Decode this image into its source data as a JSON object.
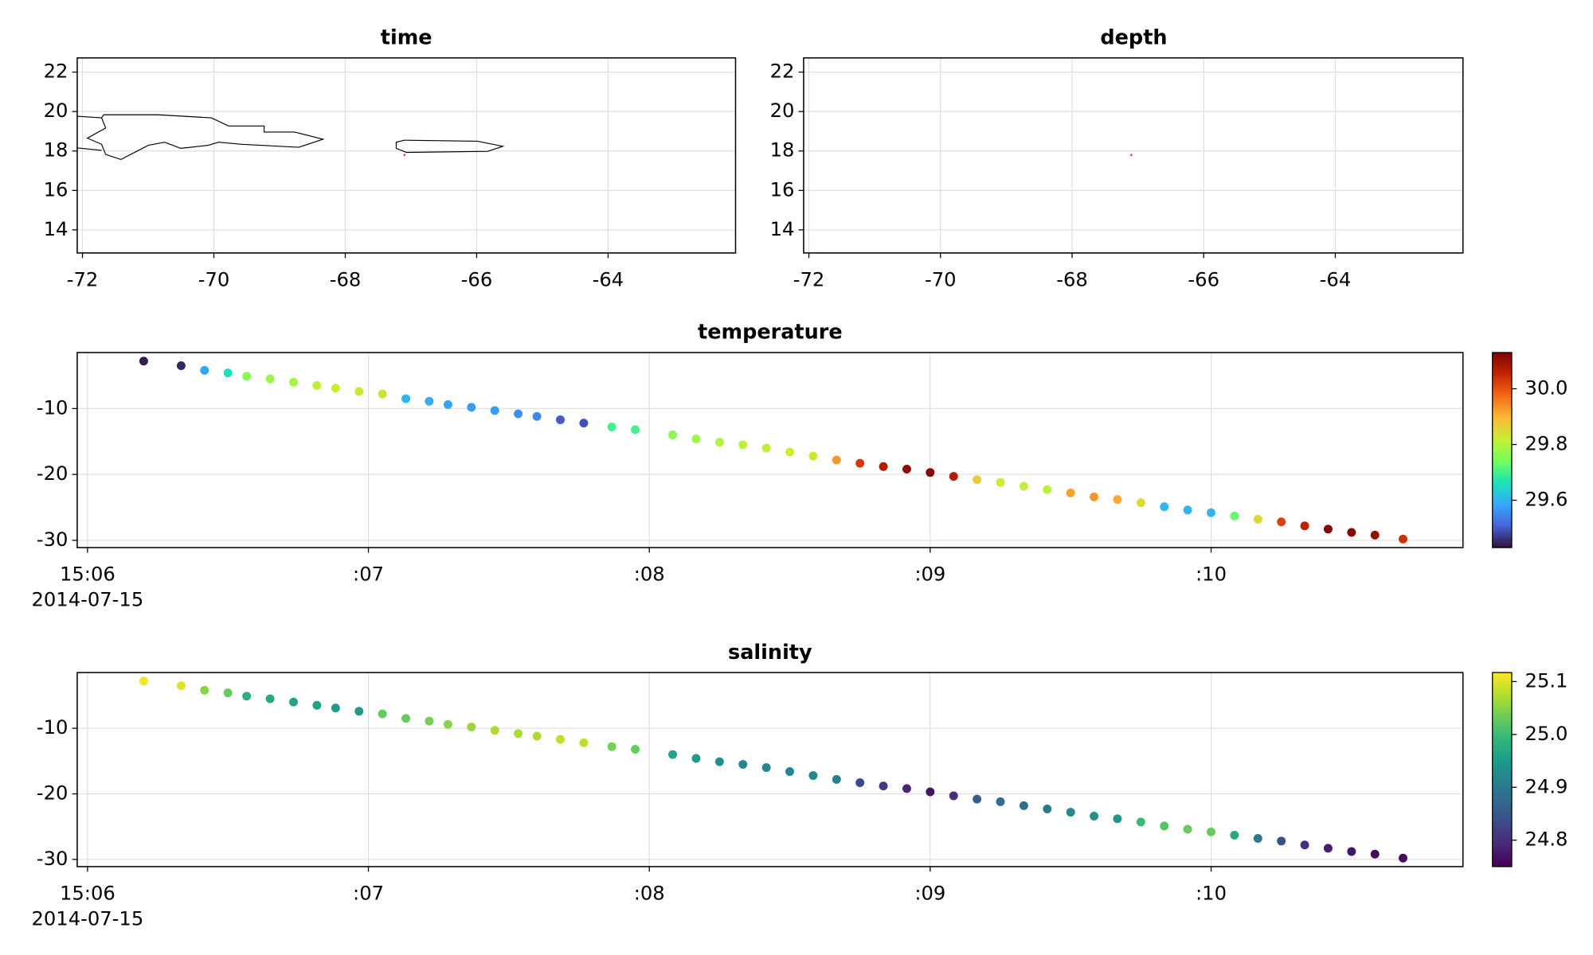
{
  "chart_data": [
    {
      "type": "map",
      "title": "time",
      "xlim": [
        -72.08,
        -62.06
      ],
      "ylim": [
        12.83,
        22.72
      ],
      "xticks": [
        -72,
        -70,
        -68,
        -66,
        -64
      ],
      "yticks": [
        14,
        16,
        18,
        20,
        22
      ],
      "grid": true,
      "x": [
        -67.1
      ],
      "y": [
        17.8
      ],
      "color": "#ff3030"
    },
    {
      "type": "map",
      "title": "depth",
      "xlim": [
        -72.08,
        -62.06
      ],
      "ylim": [
        12.83,
        22.72
      ],
      "xticks": [
        -72,
        -70,
        -68,
        -66,
        -64
      ],
      "yticks": [
        14,
        16,
        18,
        20,
        22
      ],
      "grid": true,
      "x": [
        -67.1
      ],
      "y": [
        17.8
      ],
      "color": "#ff3030"
    },
    {
      "type": "scatter",
      "title": "temperature",
      "xlim": [
        "2014-07-15T15:05:57.800",
        "2014-07-15T15:10:53.800"
      ],
      "xticks": [
        {
          "value": "2014-07-15T15:06:00",
          "label": "15:06"
        },
        {
          "value": "2014-07-15T15:07:00",
          "label": ":07"
        },
        {
          "value": "2014-07-15T15:08:00",
          "label": ":08"
        },
        {
          "value": "2014-07-15T15:09:00",
          "label": ":09"
        },
        {
          "value": "2014-07-15T15:10:00",
          "label": ":10"
        }
      ],
      "x_date_label": "2014-07-15",
      "ylim": [
        -31.1,
        -1.5
      ],
      "yticks": [
        -10,
        -20,
        -30
      ],
      "grid": true,
      "x": [
        "2014-07-15T15:06:12",
        "2014-07-15T15:06:20",
        "2014-07-15T15:06:25",
        "2014-07-15T15:06:30",
        "2014-07-15T15:06:34",
        "2014-07-15T15:06:39",
        "2014-07-15T15:06:44",
        "2014-07-15T15:06:49",
        "2014-07-15T15:06:53",
        "2014-07-15T15:06:58",
        "2014-07-15T15:07:03",
        "2014-07-15T15:07:08",
        "2014-07-15T15:07:13",
        "2014-07-15T15:07:17",
        "2014-07-15T15:07:22",
        "2014-07-15T15:07:27",
        "2014-07-15T15:07:32",
        "2014-07-15T15:07:36",
        "2014-07-15T15:07:41",
        "2014-07-15T15:07:46",
        "2014-07-15T15:07:52",
        "2014-07-15T15:07:57",
        "2014-07-15T15:08:05",
        "2014-07-15T15:08:10",
        "2014-07-15T15:08:15",
        "2014-07-15T15:08:20",
        "2014-07-15T15:08:25",
        "2014-07-15T15:08:30",
        "2014-07-15T15:08:35",
        "2014-07-15T15:08:40",
        "2014-07-15T15:08:45",
        "2014-07-15T15:08:50",
        "2014-07-15T15:08:55",
        "2014-07-15T15:09:00",
        "2014-07-15T15:09:05",
        "2014-07-15T15:09:10",
        "2014-07-15T15:09:15",
        "2014-07-15T15:09:20",
        "2014-07-15T15:09:25",
        "2014-07-15T15:09:30",
        "2014-07-15T15:09:35",
        "2014-07-15T15:09:40",
        "2014-07-15T15:09:45",
        "2014-07-15T15:09:50",
        "2014-07-15T15:09:55",
        "2014-07-15T15:10:00",
        "2014-07-15T15:10:05",
        "2014-07-15T15:10:10",
        "2014-07-15T15:10:15",
        "2014-07-15T15:10:20",
        "2014-07-15T15:10:25",
        "2014-07-15T15:10:30",
        "2014-07-15T15:10:35",
        "2014-07-15T15:10:41"
      ],
      "y": [
        -2.8,
        -3.5,
        -4.2,
        -4.6,
        -5.1,
        -5.5,
        -6.0,
        -6.5,
        -6.9,
        -7.4,
        -7.8,
        -8.5,
        -8.9,
        -9.4,
        -9.8,
        -10.3,
        -10.8,
        -11.2,
        -11.7,
        -12.2,
        -12.8,
        -13.2,
        -14.0,
        -14.6,
        -15.1,
        -15.5,
        -16.0,
        -16.6,
        -17.2,
        -17.8,
        -18.3,
        -18.8,
        -19.2,
        -19.7,
        -20.3,
        -20.8,
        -21.2,
        -21.8,
        -22.3,
        -22.8,
        -23.4,
        -23.8,
        -24.3,
        -24.9,
        -25.4,
        -25.8,
        -26.3,
        -26.8,
        -27.2,
        -27.8,
        -28.3,
        -28.8,
        -29.2,
        -29.8
      ],
      "values": [
        29.44,
        29.45,
        29.58,
        29.66,
        29.76,
        29.78,
        29.79,
        29.81,
        29.82,
        29.83,
        29.84,
        29.6,
        29.59,
        29.58,
        29.57,
        29.57,
        29.56,
        29.55,
        29.5,
        29.49,
        29.7,
        29.7,
        29.76,
        29.78,
        29.8,
        29.81,
        29.81,
        29.82,
        29.83,
        29.93,
        30.03,
        30.07,
        30.11,
        30.12,
        30.07,
        29.87,
        29.82,
        29.81,
        29.81,
        29.92,
        29.93,
        29.91,
        29.85,
        29.6,
        29.6,
        29.6,
        29.73,
        29.85,
        30.02,
        30.06,
        30.12,
        30.12,
        30.1,
        30.04
      ],
      "clim": [
        29.43,
        30.13
      ],
      "colorbar_ticks": [
        29.6,
        29.8,
        {
          "value": 30,
          "label": "30.0"
        }
      ],
      "colormap": [
        "#30123b",
        "#4662d7",
        "#36aaf9",
        "#1ae4b6",
        "#72fe5e",
        "#c7ef34",
        "#fbb938",
        "#f56918",
        "#c42503",
        "#7a0403"
      ]
    },
    {
      "type": "scatter",
      "title": "salinity",
      "xlim": [
        "2014-07-15T15:05:57.800",
        "2014-07-15T15:10:53.800"
      ],
      "xticks": [
        {
          "value": "2014-07-15T15:06:00",
          "label": "15:06"
        },
        {
          "value": "2014-07-15T15:07:00",
          "label": ":07"
        },
        {
          "value": "2014-07-15T15:08:00",
          "label": ":08"
        },
        {
          "value": "2014-07-15T15:09:00",
          "label": ":09"
        },
        {
          "value": "2014-07-15T15:10:00",
          "label": ":10"
        }
      ],
      "x_date_label": "2014-07-15",
      "ylim": [
        -31.1,
        -1.5
      ],
      "yticks": [
        -10,
        -20,
        -30
      ],
      "grid": true,
      "x": [
        "2014-07-15T15:06:12",
        "2014-07-15T15:06:20",
        "2014-07-15T15:06:25",
        "2014-07-15T15:06:30",
        "2014-07-15T15:06:34",
        "2014-07-15T15:06:39",
        "2014-07-15T15:06:44",
        "2014-07-15T15:06:49",
        "2014-07-15T15:06:53",
        "2014-07-15T15:06:58",
        "2014-07-15T15:07:03",
        "2014-07-15T15:07:08",
        "2014-07-15T15:07:13",
        "2014-07-15T15:07:17",
        "2014-07-15T15:07:22",
        "2014-07-15T15:07:27",
        "2014-07-15T15:07:32",
        "2014-07-15T15:07:36",
        "2014-07-15T15:07:41",
        "2014-07-15T15:07:46",
        "2014-07-15T15:07:52",
        "2014-07-15T15:07:57",
        "2014-07-15T15:08:05",
        "2014-07-15T15:08:10",
        "2014-07-15T15:08:15",
        "2014-07-15T15:08:20",
        "2014-07-15T15:08:25",
        "2014-07-15T15:08:30",
        "2014-07-15T15:08:35",
        "2014-07-15T15:08:40",
        "2014-07-15T15:08:45",
        "2014-07-15T15:08:50",
        "2014-07-15T15:08:55",
        "2014-07-15T15:09:00",
        "2014-07-15T15:09:05",
        "2014-07-15T15:09:10",
        "2014-07-15T15:09:15",
        "2014-07-15T15:09:20",
        "2014-07-15T15:09:25",
        "2014-07-15T15:09:30",
        "2014-07-15T15:09:35",
        "2014-07-15T15:09:40",
        "2014-07-15T15:09:45",
        "2014-07-15T15:09:50",
        "2014-07-15T15:09:55",
        "2014-07-15T15:10:00",
        "2014-07-15T15:10:05",
        "2014-07-15T15:10:10",
        "2014-07-15T15:10:15",
        "2014-07-15T15:10:20",
        "2014-07-15T15:10:25",
        "2014-07-15T15:10:30",
        "2014-07-15T15:10:35",
        "2014-07-15T15:10:41"
      ],
      "y": [
        -2.8,
        -3.5,
        -4.2,
        -4.6,
        -5.1,
        -5.5,
        -6.0,
        -6.5,
        -6.9,
        -7.4,
        -7.8,
        -8.5,
        -8.9,
        -9.4,
        -9.8,
        -10.3,
        -10.8,
        -11.2,
        -11.7,
        -12.2,
        -12.8,
        -13.2,
        -14.0,
        -14.6,
        -15.1,
        -15.5,
        -16.0,
        -16.6,
        -17.2,
        -17.8,
        -18.3,
        -18.8,
        -19.2,
        -19.7,
        -20.3,
        -20.8,
        -21.2,
        -21.8,
        -22.3,
        -22.8,
        -23.4,
        -23.8,
        -24.3,
        -24.9,
        -25.4,
        -25.8,
        -26.3,
        -26.8,
        -27.2,
        -27.8,
        -28.3,
        -28.8,
        -29.2,
        -29.8
      ],
      "values": [
        25.11,
        25.1,
        25.05,
        25.03,
        24.98,
        24.97,
        24.96,
        24.96,
        24.95,
        24.95,
        25.03,
        25.03,
        25.04,
        25.05,
        25.06,
        25.07,
        25.07,
        25.07,
        25.08,
        25.08,
        25.04,
        25.03,
        24.96,
        24.95,
        24.93,
        24.92,
        24.92,
        24.92,
        24.92,
        24.91,
        24.83,
        24.81,
        24.79,
        24.77,
        24.8,
        24.86,
        24.88,
        24.88,
        24.9,
        24.92,
        24.93,
        24.94,
        25.0,
        25.02,
        25.03,
        25.03,
        24.97,
        24.9,
        24.84,
        24.8,
        24.78,
        24.77,
        24.76,
        24.76
      ],
      "clim": [
        24.75,
        25.117
      ],
      "colorbar_ticks": [
        24.8,
        24.9,
        {
          "value": 25,
          "label": "25.0"
        },
        25.1
      ],
      "colormap": [
        "#440154",
        "#482878",
        "#3e4989",
        "#31688e",
        "#26828e",
        "#1f9e89",
        "#35b779",
        "#6ece58",
        "#b5de2b",
        "#fde725"
      ]
    }
  ]
}
